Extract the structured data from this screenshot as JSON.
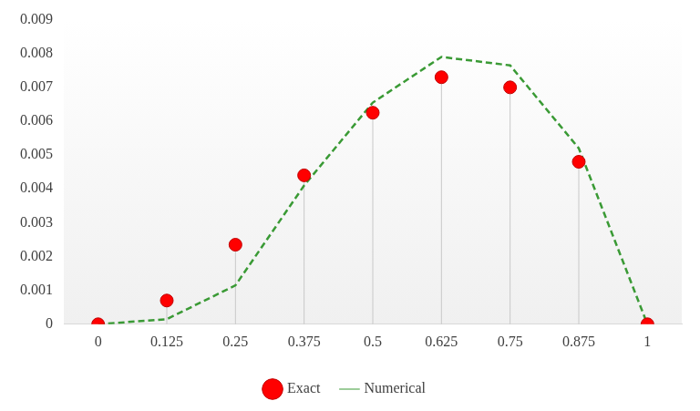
{
  "chart_data": {
    "type": "line",
    "categories": [
      "0",
      "0.125",
      "0.25",
      "0.375",
      "0.5",
      "0.625",
      "0.75",
      "0.875",
      "1"
    ],
    "series": [
      {
        "name": "Numerical",
        "type": "line",
        "color": "#3a9a35",
        "line_style": "dashed",
        "marker": "none",
        "values": [
          0,
          0.00015,
          0.00115,
          0.0041,
          0.00655,
          0.0079,
          0.00765,
          0.0052,
          0
        ]
      },
      {
        "name": "Exact",
        "type": "scatter",
        "color": "#ff0000",
        "marker": "circle",
        "values": [
          0,
          0.0007,
          0.00235,
          0.0044,
          0.00625,
          0.0073,
          0.007,
          0.0048,
          0
        ]
      }
    ],
    "ylim": [
      0,
      0.009
    ],
    "yticks": [
      0,
      0.001,
      0.002,
      0.003,
      0.004,
      0.005,
      0.006,
      0.007,
      0.008,
      0.009
    ],
    "grid": false,
    "legend": "bottom"
  }
}
